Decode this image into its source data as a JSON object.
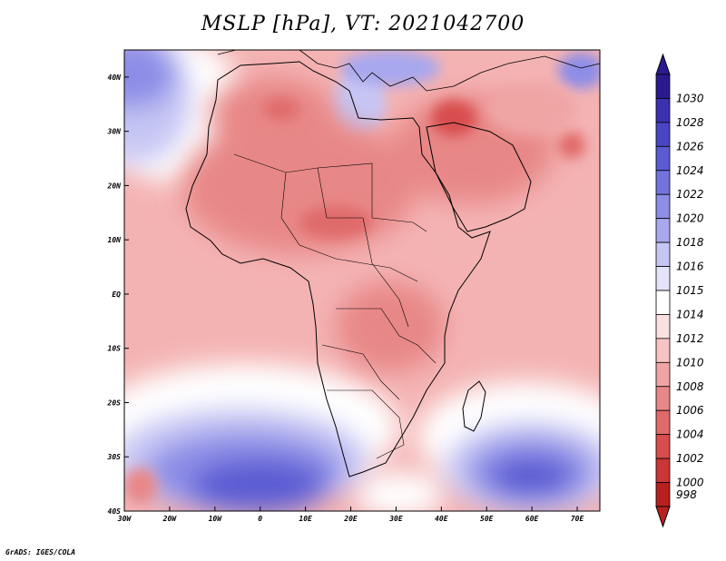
{
  "title": "MSLP [hPa], VT: 2021042700",
  "credit": "GrADS: IGES/COLA",
  "map": {
    "lon_range": [
      -30,
      75
    ],
    "lat_range": [
      -40,
      45
    ],
    "lon_ticks": [
      {
        "value": -30,
        "label": "30W"
      },
      {
        "value": -20,
        "label": "20W"
      },
      {
        "value": -10,
        "label": "10W"
      },
      {
        "value": 0,
        "label": "0"
      },
      {
        "value": 10,
        "label": "10E"
      },
      {
        "value": 20,
        "label": "20E"
      },
      {
        "value": 30,
        "label": "30E"
      },
      {
        "value": 40,
        "label": "40E"
      },
      {
        "value": 50,
        "label": "50E"
      },
      {
        "value": 60,
        "label": "60E"
      },
      {
        "value": 70,
        "label": "70E"
      }
    ],
    "lat_ticks": [
      {
        "value": 40,
        "label": "40N"
      },
      {
        "value": 30,
        "label": "30N"
      },
      {
        "value": 20,
        "label": "20N"
      },
      {
        "value": 10,
        "label": "10N"
      },
      {
        "value": 0,
        "label": "EQ"
      },
      {
        "value": -10,
        "label": "10S"
      },
      {
        "value": -20,
        "label": "20S"
      },
      {
        "value": -30,
        "label": "30S"
      },
      {
        "value": -40,
        "label": "40S"
      }
    ]
  },
  "colorbar": {
    "levels": [
      {
        "label": "1030",
        "color": "#2a1a8f"
      },
      {
        "label": "1028",
        "color": "#3b31b0"
      },
      {
        "label": "1026",
        "color": "#4a45c4"
      },
      {
        "label": "1024",
        "color": "#5c5bd3"
      },
      {
        "label": "1022",
        "color": "#7373de"
      },
      {
        "label": "1020",
        "color": "#8d8de7"
      },
      {
        "label": "1018",
        "color": "#a8a8ee"
      },
      {
        "label": "1016",
        "color": "#c6c6f4"
      },
      {
        "label": "1015",
        "color": "#e3e3fa"
      },
      {
        "label": "1014",
        "color": "#ffffff"
      },
      {
        "label": "1012",
        "color": "#fbe0e0"
      },
      {
        "label": "1010",
        "color": "#f7c3c3"
      },
      {
        "label": "1008",
        "color": "#f0a5a5"
      },
      {
        "label": "1006",
        "color": "#e88787"
      },
      {
        "label": "1004",
        "color": "#e06a6a"
      },
      {
        "label": "1002",
        "color": "#d84d4d"
      },
      {
        "label": "1000",
        "color": "#cb3535"
      },
      {
        "label": "998",
        "color": "#b81f1f"
      }
    ]
  },
  "colors": {
    "ocean_base": "#f7c3c3",
    "high_blue": "#5c5bd3",
    "low_red": "#e06a6a",
    "outline": "#000000"
  }
}
